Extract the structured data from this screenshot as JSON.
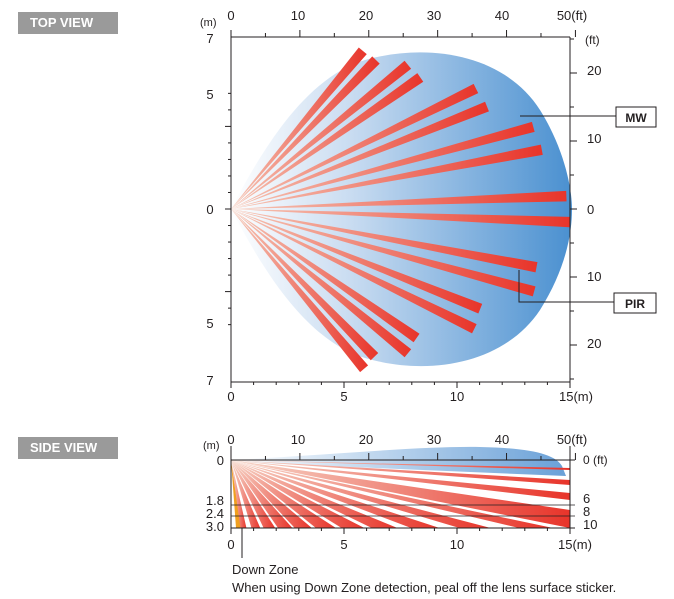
{
  "top_view": {
    "title": "TOP VIEW",
    "x_unit_m": "(m)",
    "x_unit_ft": "(ft)",
    "y_unit_m": "(m)",
    "y_unit_ft": "(ft)",
    "x_ticks_m": [
      "0",
      "5",
      "10",
      "15(m)"
    ],
    "x_ticks_ft": [
      "0",
      "10",
      "20",
      "30",
      "40",
      "50(ft)"
    ],
    "y_ticks_m_left": [
      "7",
      "5",
      "0",
      "5",
      "7"
    ],
    "y_ticks_ft_right": [
      "20",
      "10",
      "0",
      "10",
      "20"
    ],
    "labels": {
      "mw": "MW",
      "pir": "PIR"
    },
    "colors": {
      "mw_zone": "#4a90d0",
      "pir_beam": "#e8342a"
    },
    "mw_range_m": 15,
    "pir_beams": [
      {
        "angle_deg": -48,
        "length_m": 9.2,
        "count": 2
      },
      {
        "angle_deg": -37,
        "length_m": 10.2,
        "count": 2
      },
      {
        "angle_deg": -24,
        "length_m": 12.2,
        "count": 2
      },
      {
        "angle_deg": -13,
        "length_m": 14.0,
        "count": 2
      },
      {
        "angle_deg": 0,
        "length_m": 15.0,
        "count": 2
      },
      {
        "angle_deg": 13,
        "length_m": 13.9,
        "count": 2
      },
      {
        "angle_deg": 24,
        "length_m": 12.0,
        "count": 2
      },
      {
        "angle_deg": 37,
        "length_m": 10.1,
        "count": 2
      },
      {
        "angle_deg": 48,
        "length_m": 9.2,
        "count": 2
      }
    ]
  },
  "side_view": {
    "title": "SIDE VIEW",
    "x_ticks_m": [
      "0",
      "5",
      "10",
      "15(m)"
    ],
    "x_ticks_ft": [
      "0",
      "10",
      "20",
      "30",
      "40",
      "50(ft)"
    ],
    "left_unit": "(m)",
    "y_ticks_m": [
      "0",
      "1.8",
      "2.4",
      "3.0"
    ],
    "y_ticks_ft": [
      "0 (ft)",
      "6",
      "8",
      "10"
    ],
    "y_values_m": [
      0,
      1.8,
      2.4,
      3.0
    ],
    "down_zone_label": "Down Zone",
    "note": "When using Down Zone detection, peal off the lens surface sticker.",
    "colors": {
      "beam": "#e8342a",
      "mw": "#4a90d0",
      "down_zone": "#f0a020"
    }
  }
}
